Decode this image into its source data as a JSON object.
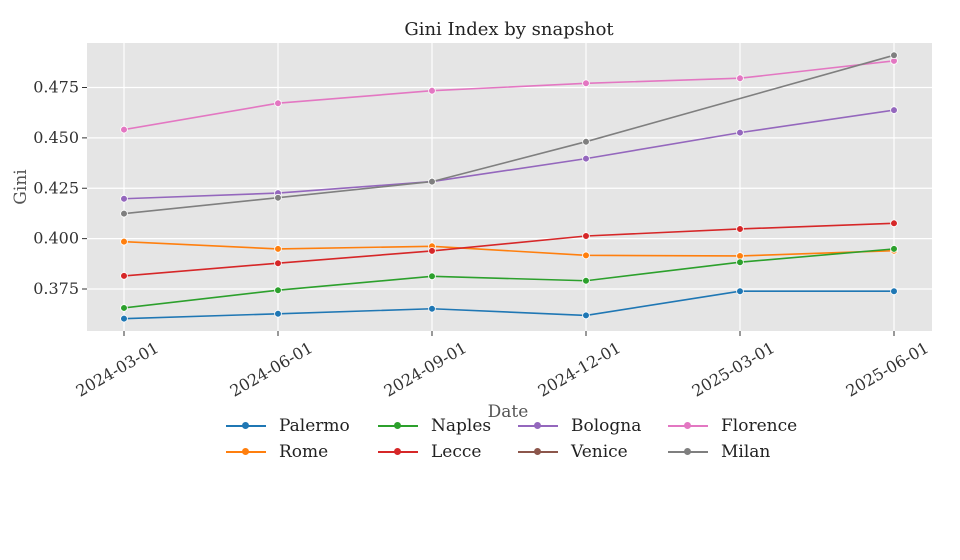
{
  "chart_data": {
    "type": "line",
    "title": "Gini Index by snapshot",
    "xlabel": "Date",
    "ylabel": "Gini",
    "categories": [
      "2024-03-01",
      "2024-06-01",
      "2024-09-01",
      "2024-12-01",
      "2025-03-01",
      "2025-06-01"
    ],
    "yticks": [
      0.375,
      0.4,
      0.425,
      0.45,
      0.475
    ],
    "ytick_labels": [
      "0.375",
      "0.400",
      "0.425",
      "0.450",
      "0.475"
    ],
    "ylim": [
      0.355,
      0.497
    ],
    "grid": true,
    "legend_position": "bottom",
    "series": [
      {
        "name": "Palermo",
        "color": "#1f77b4",
        "values": [
          0.3603,
          0.3627,
          0.3652,
          0.3619,
          0.3739,
          0.3739
        ]
      },
      {
        "name": "Rome",
        "color": "#ff7f0e",
        "values": [
          0.3985,
          0.3949,
          0.3962,
          0.3917,
          0.3914,
          0.394
        ]
      },
      {
        "name": "Naples",
        "color": "#2ca02c",
        "values": [
          0.3656,
          0.3744,
          0.3813,
          0.3791,
          0.3883,
          0.3949
        ]
      },
      {
        "name": "Lecce",
        "color": "#d62728",
        "values": [
          0.3815,
          0.3878,
          0.3939,
          0.4013,
          0.4048,
          0.4076
        ]
      },
      {
        "name": "Bologna",
        "color": "#9467bd",
        "values": [
          0.4198,
          0.4226,
          0.4283,
          0.4397,
          0.4526,
          0.4638
        ]
      },
      {
        "name": "Venice",
        "color": "#8c564b",
        "values": [
          null,
          null,
          null,
          null,
          null,
          null
        ]
      },
      {
        "name": "Florence",
        "color": "#e377c2",
        "values": [
          0.4541,
          0.4672,
          0.4734,
          0.4771,
          0.4796,
          0.4882
        ]
      },
      {
        "name": "Milan",
        "color": "#7f7f7f",
        "values": [
          0.4124,
          0.4203,
          0.4283,
          0.4481,
          null,
          0.491
        ]
      }
    ]
  },
  "legend": {
    "items": [
      {
        "label": "Palermo",
        "color": "#1f77b4"
      },
      {
        "label": "Naples",
        "color": "#2ca02c"
      },
      {
        "label": "Bologna",
        "color": "#9467bd"
      },
      {
        "label": "Florence",
        "color": "#e377c2"
      },
      {
        "label": "Rome",
        "color": "#ff7f0e"
      },
      {
        "label": "Lecce",
        "color": "#d62728"
      },
      {
        "label": "Venice",
        "color": "#8c564b"
      },
      {
        "label": "Milan",
        "color": "#7f7f7f"
      }
    ]
  },
  "style": {
    "plot_bg": "#e5e5e5",
    "grid_color": "#ffffff"
  }
}
